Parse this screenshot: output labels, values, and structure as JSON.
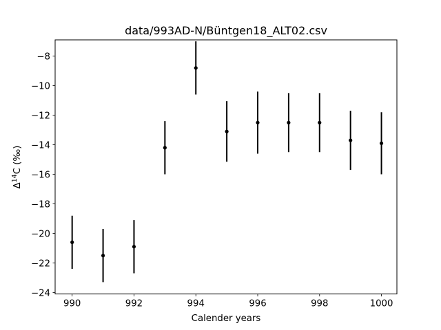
{
  "chart_data": {
    "type": "scatter",
    "style": "errorbar",
    "title": "data/993AD-N/Büntgen18_ALT02.csv",
    "xlabel": "Calender years",
    "ylabel": {
      "prefix": "Δ",
      "superscript": "14",
      "suffix": "C (‰)"
    },
    "xlim": [
      989.45,
      1000.5
    ],
    "ylim": [
      -24.1,
      -6.9
    ],
    "xticks": [
      990,
      992,
      994,
      996,
      998,
      1000
    ],
    "xtick_labels": [
      "990",
      "992",
      "994",
      "996",
      "998",
      "1000"
    ],
    "yticks": [
      -8,
      -10,
      -12,
      -14,
      -16,
      -18,
      -20,
      -22,
      -24
    ],
    "ytick_labels": [
      "−8",
      "−10",
      "−12",
      "−14",
      "−16",
      "−18",
      "−20",
      "−22",
      "−24"
    ],
    "series": [
      {
        "name": "Büntgen18_ALT02",
        "color": "#000000",
        "x": [
          990,
          991,
          992,
          993,
          994,
          995,
          996,
          997,
          998,
          999,
          1000
        ],
        "y": [
          -20.6,
          -21.5,
          -20.9,
          -14.2,
          -8.8,
          -13.1,
          -12.5,
          -12.5,
          -12.5,
          -13.7,
          -13.9
        ],
        "yerr": [
          1.8,
          1.8,
          1.8,
          1.8,
          1.8,
          2.05,
          2.1,
          2.0,
          2.0,
          2.0,
          2.1
        ]
      }
    ]
  }
}
